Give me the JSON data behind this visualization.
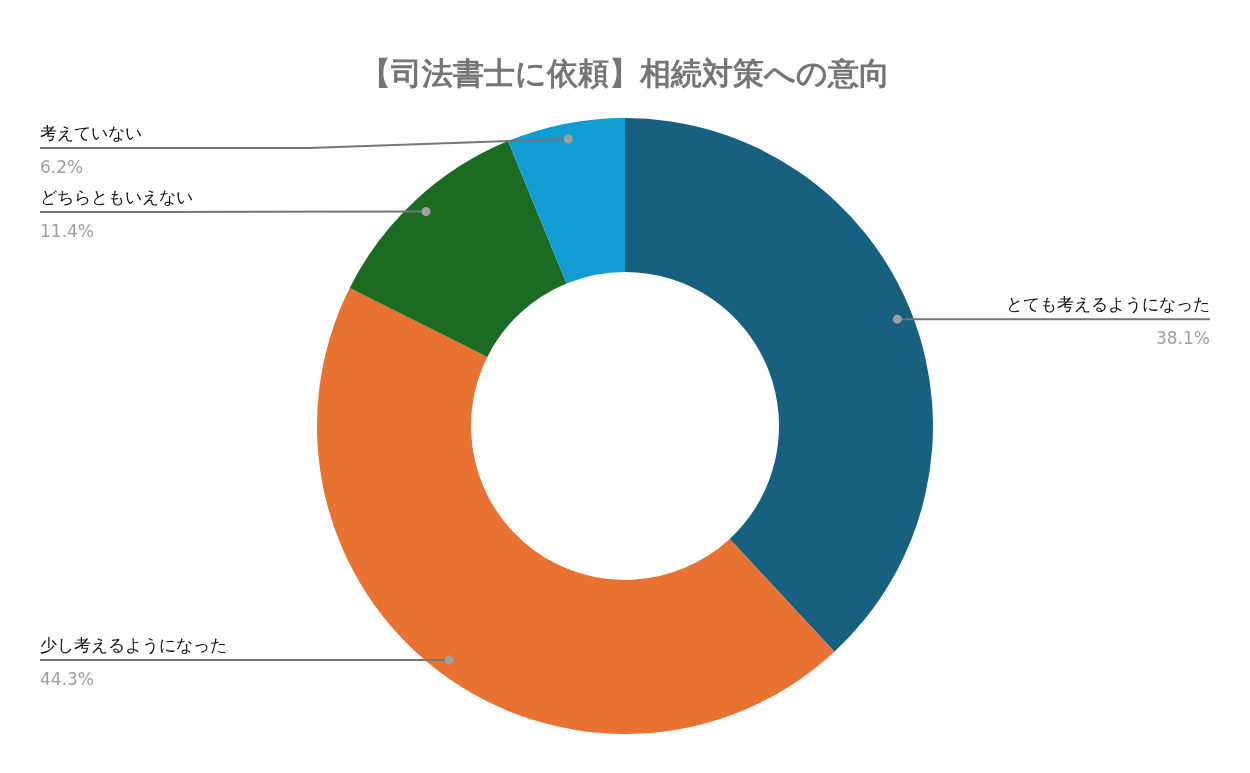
{
  "chart_data": {
    "type": "donut",
    "title": "【司法書士に依頼】相続対策への意向",
    "categories": [
      "とても考えるようになった",
      "少し考えるようになった",
      "どちらともいえない",
      "考えていない"
    ],
    "values": [
      38.1,
      44.3,
      11.4,
      6.2
    ],
    "colors": [
      "#17607f",
      "#e87232",
      "#1b6b22",
      "#129dd4"
    ],
    "value_labels": [
      "38.1%",
      "44.3%",
      "11.4%",
      "6.2%"
    ]
  }
}
